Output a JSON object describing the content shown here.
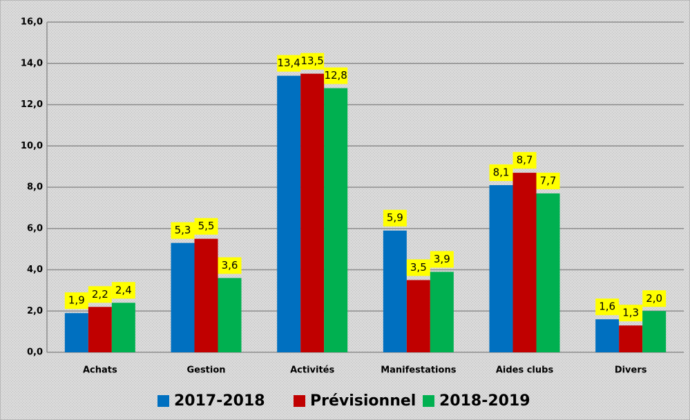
{
  "chart_data": {
    "type": "bar",
    "categories": [
      "Achats",
      "Gestion",
      "Activités",
      "Manifestations",
      "Aides clubs",
      "Divers"
    ],
    "series": [
      {
        "name": "2017-2018",
        "color": "#0070c0",
        "values": [
          1.9,
          5.3,
          13.4,
          5.9,
          8.1,
          1.6
        ],
        "value_labels": [
          "1,9",
          "5,3",
          "13,4",
          "5,9",
          "8,1",
          "1,6"
        ]
      },
      {
        "name": "Prévisionnel",
        "color": "#c00000",
        "values": [
          2.2,
          5.5,
          13.5,
          3.5,
          8.7,
          1.3
        ],
        "value_labels": [
          "2,2",
          "5,5",
          "13,5",
          "3,5",
          "8,7",
          "1,3"
        ]
      },
      {
        "name": "2018-2019",
        "color": "#00b050",
        "values": [
          2.4,
          3.6,
          12.8,
          3.9,
          7.7,
          2.0
        ],
        "value_labels": [
          "2,4",
          "3,6",
          "12,8",
          "3,9",
          "7,7",
          "2,0"
        ]
      }
    ],
    "ylim": [
      0,
      16
    ],
    "yticks": [
      {
        "value": 0,
        "label": "0,0"
      },
      {
        "value": 2,
        "label": "2,0"
      },
      {
        "value": 4,
        "label": "4,0"
      },
      {
        "value": 6,
        "label": "6,0"
      },
      {
        "value": 8,
        "label": "8,0"
      },
      {
        "value": 10,
        "label": "10,0"
      },
      {
        "value": 12,
        "label": "12,0"
      },
      {
        "value": 14,
        "label": "14,0"
      },
      {
        "value": 16,
        "label": "16,0"
      }
    ],
    "grid": true,
    "legend": "bottom"
  }
}
